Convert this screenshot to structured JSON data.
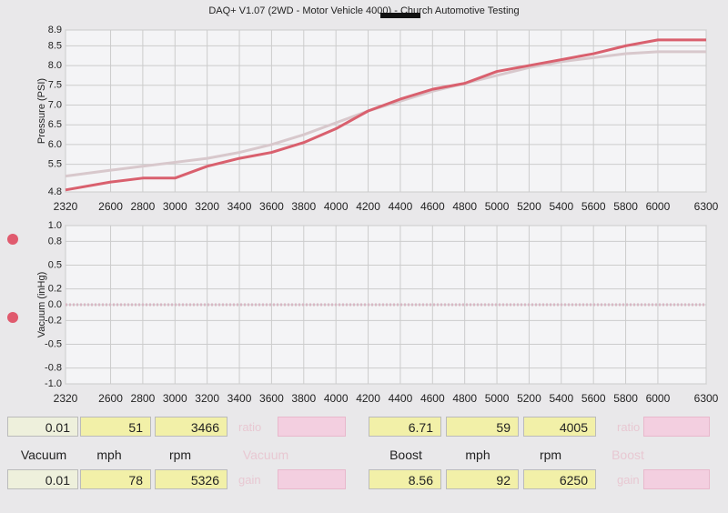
{
  "title": "DAQ+ V1.07 (2WD - Motor Vehicle 4000) - Church Automotive Testing",
  "chart_data": [
    {
      "type": "line",
      "ylabel": "Pressure (PSI)",
      "x": [
        2320,
        2600,
        2800,
        3000,
        3200,
        3400,
        3600,
        3800,
        4000,
        4200,
        4400,
        4600,
        4800,
        5000,
        5200,
        5400,
        5600,
        5800,
        6000,
        6300
      ],
      "xlim": [
        2320,
        6300
      ],
      "xticks": [
        2320,
        2600,
        2800,
        3000,
        3200,
        3400,
        3600,
        3800,
        4000,
        4200,
        4400,
        4600,
        4800,
        5000,
        5200,
        5400,
        5600,
        5800,
        6000,
        6300
      ],
      "ylim": [
        4.8,
        8.9
      ],
      "yticks": [
        4.8,
        5.5,
        {
          "value": 6,
          "label": "6.0"
        },
        6.5,
        {
          "value": 7,
          "label": "7.0"
        },
        7.5,
        {
          "value": 8,
          "label": "8.0"
        },
        8.5,
        8.9
      ],
      "grid": true,
      "series": [
        {
          "color": "#d8c8cc",
          "values": [
            5.2,
            5.35,
            5.45,
            5.55,
            5.65,
            5.8,
            6.0,
            6.25,
            6.55,
            6.85,
            7.1,
            7.35,
            7.55,
            7.75,
            7.95,
            8.1,
            8.2,
            8.3,
            8.35,
            8.35
          ]
        },
        {
          "color": "#d9606e",
          "values": [
            4.85,
            5.05,
            5.15,
            5.15,
            5.45,
            5.65,
            5.8,
            6.05,
            6.4,
            6.85,
            7.15,
            7.4,
            7.55,
            7.85,
            8.0,
            8.15,
            8.3,
            8.5,
            8.65,
            8.65
          ]
        }
      ]
    },
    {
      "type": "line",
      "ylabel": "Vacuum (inHg)",
      "x": [
        2320,
        2600,
        2800,
        3000,
        3200,
        3400,
        3600,
        3800,
        4000,
        4200,
        4400,
        4600,
        4800,
        5000,
        5200,
        5400,
        5600,
        5800,
        6000,
        6300
      ],
      "xlim": [
        2320,
        6300
      ],
      "xticks": [
        2320,
        2600,
        2800,
        3000,
        3200,
        3400,
        3600,
        3800,
        4000,
        4200,
        4400,
        4600,
        4800,
        5000,
        5200,
        5400,
        5600,
        5800,
        6000,
        6300
      ],
      "ylim": [
        -1,
        1
      ],
      "yticks": [
        {
          "value": -1,
          "label": "-1.0"
        },
        -0.8,
        -0.5,
        -0.2,
        {
          "value": 0,
          "label": "0.0"
        },
        0.2,
        0.5,
        0.8,
        {
          "value": 1,
          "label": "1.0"
        }
      ],
      "grid": true,
      "series": [
        {
          "color": "#d8b8c4",
          "values": [
            0,
            0,
            0,
            0,
            0,
            0,
            0,
            0,
            0,
            0,
            0,
            0,
            0,
            0,
            0,
            0,
            0,
            0,
            0,
            0
          ]
        }
      ]
    }
  ],
  "readouts": {
    "top": [
      "0.01",
      "51",
      "3466",
      "ratio",
      "6.71",
      "59",
      "4005",
      "ratio"
    ],
    "labels": [
      "Vacuum",
      "mph",
      "rpm",
      "Vacuum",
      "Boost",
      "mph",
      "rpm",
      "Boost"
    ],
    "bottom": [
      "0.01",
      "78",
      "5326",
      "gain",
      "8.56",
      "92",
      "6250",
      "gain"
    ]
  }
}
